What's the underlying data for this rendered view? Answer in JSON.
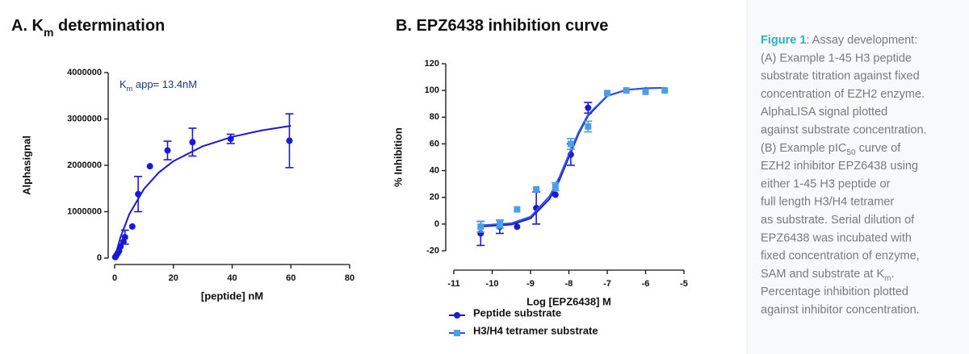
{
  "chart_data": [
    {
      "type": "scatter",
      "title": [
        {
          "text": "A. K"
        },
        {
          "text": "m",
          "sub": true
        },
        {
          "text": " determination"
        }
      ],
      "annotation": [
        {
          "text": "K"
        },
        {
          "text": "m",
          "sub": true
        },
        {
          "text": " app= 13.4nM"
        }
      ],
      "xlabel": "[peptide] nM",
      "ylabel": "Alphasignal",
      "xlim": [
        0,
        80
      ],
      "xticks": [
        0,
        20,
        40,
        60,
        80
      ],
      "ylim": [
        0,
        4000000
      ],
      "yticks": [
        0,
        1000000,
        2000000,
        3000000,
        4000000
      ],
      "series": [
        {
          "color": "#1a1ad6",
          "marker": "circle",
          "x": [
            0.2,
            0.5,
            1,
            1.5,
            2,
            3,
            3.5,
            6,
            8,
            12,
            18,
            26.5,
            39.5,
            59.5
          ],
          "values": [
            20000,
            50000,
            100000,
            150000,
            250000,
            350000,
            450000,
            680000,
            1380000,
            1980000,
            2320000,
            2500000,
            2570000,
            2530000
          ],
          "errors": [
            null,
            null,
            null,
            null,
            null,
            null,
            150000,
            null,
            380000,
            null,
            200000,
            300000,
            100000,
            580000
          ],
          "fit": {
            "color": "#1a1ad6",
            "x": [
              0,
              2,
              5,
              10,
              15,
              20,
              30,
              40,
              50,
              60
            ],
            "values": [
              0,
              453000,
              948000,
              1491000,
              1843000,
              2090000,
              2412000,
              2614000,
              2752000,
              2853000
            ]
          }
        }
      ]
    },
    {
      "type": "scatter",
      "title": [
        {
          "text": "B. EPZ6438 inhibition curve"
        }
      ],
      "xlabel": "Log [EPZ6438] M",
      "ylabel": "% Inhibition",
      "xlim": [
        -11,
        -5
      ],
      "xticks": [
        -11,
        -10,
        -9,
        -8,
        -7,
        -6,
        -5
      ],
      "ylim": [
        -20,
        120
      ],
      "yticks": [
        -20,
        0,
        20,
        40,
        60,
        80,
        100,
        120
      ],
      "series": [
        {
          "name": "Peptide substrate",
          "color": "#1a1ad6",
          "marker": "circle",
          "x": [
            -10.3,
            -9.8,
            -9.35,
            -8.85,
            -8.35,
            -7.95,
            -7.5,
            -7.0,
            -6.5,
            -6.0,
            -5.5
          ],
          "values": [
            -7,
            -2,
            -2,
            12,
            22,
            52,
            87,
            98,
            100,
            100,
            100
          ],
          "errors": [
            9,
            5,
            null,
            12,
            null,
            8,
            4,
            null,
            null,
            null,
            null
          ],
          "fit": {
            "color": "#1a1ad6",
            "x": [
              -10.3,
              -9.5,
              -9,
              -8.5,
              -8.25,
              -8,
              -7.75,
              -7.5,
              -7,
              -6.5,
              -6,
              -5.5
            ],
            "values": [
              -1.8,
              -0.4,
              4.2,
              18.9,
              32.7,
              50,
              67.3,
              81.1,
              95.8,
              100.4,
              101.6,
              101.9
            ]
          }
        },
        {
          "name": "H3/H4 tetramer substrate",
          "color": "#4a9fe8",
          "marker": "square",
          "x": [
            -10.3,
            -9.8,
            -9.35,
            -8.85,
            -8.35,
            -7.95,
            -7.5,
            -7.0,
            -6.5,
            -6.0,
            -5.5
          ],
          "values": [
            -2,
            0,
            11,
            26,
            28,
            60,
            73,
            98,
            100,
            99,
            100
          ],
          "errors": [
            4,
            3,
            null,
            null,
            3,
            4,
            4,
            null,
            null,
            null,
            null
          ],
          "fit": {
            "color": "#2f55e0",
            "x": [
              -10.3,
              -9.5,
              -9,
              -8.5,
              -8.25,
              -8,
              -7.75,
              -7.5,
              -7,
              -6.5,
              -6,
              -5.5
            ],
            "values": [
              -1,
              0.6,
              5.5,
              21,
              35,
              52,
              68.5,
              82,
              96,
              100.5,
              101.7,
              102
            ]
          }
        }
      ]
    }
  ],
  "caption": {
    "lines": [
      [
        {
          "text": "Figure 1",
          "strong": true
        },
        {
          "text": ": Assay development:"
        }
      ],
      [
        {
          "text": "(A) Example 1-45 H3 peptide"
        }
      ],
      [
        {
          "text": "substrate titration against fixed"
        }
      ],
      [
        {
          "text": "concentration of EZH2 enzyme."
        }
      ],
      [
        {
          "text": "AlphaLISA signal plotted"
        }
      ],
      [
        {
          "text": "against substrate concentration."
        }
      ],
      [
        {
          "text": "(B) Example pIC"
        },
        {
          "text": "50",
          "sub": true
        },
        {
          "text": " curve of"
        }
      ],
      [
        {
          "text": "EZH2 inhibitor EPZ6438 using"
        }
      ],
      [
        {
          "text": "either 1-45 H3 peptide or"
        }
      ],
      [
        {
          "text": "full length H3/H4 tetramer"
        }
      ],
      [
        {
          "text": "as substrate. Serial dilution of"
        }
      ],
      [
        {
          "text": "EPZ6438 was incubated with"
        }
      ],
      [
        {
          "text": "fixed concentration of enzyme,"
        }
      ],
      [
        {
          "text": "SAM and substrate at K"
        },
        {
          "text": "m",
          "sub": true
        },
        {
          "text": "."
        }
      ],
      [
        {
          "text": "Percentage inhibition plotted"
        }
      ],
      [
        {
          "text": "against inhibitor concentration."
        }
      ]
    ]
  }
}
